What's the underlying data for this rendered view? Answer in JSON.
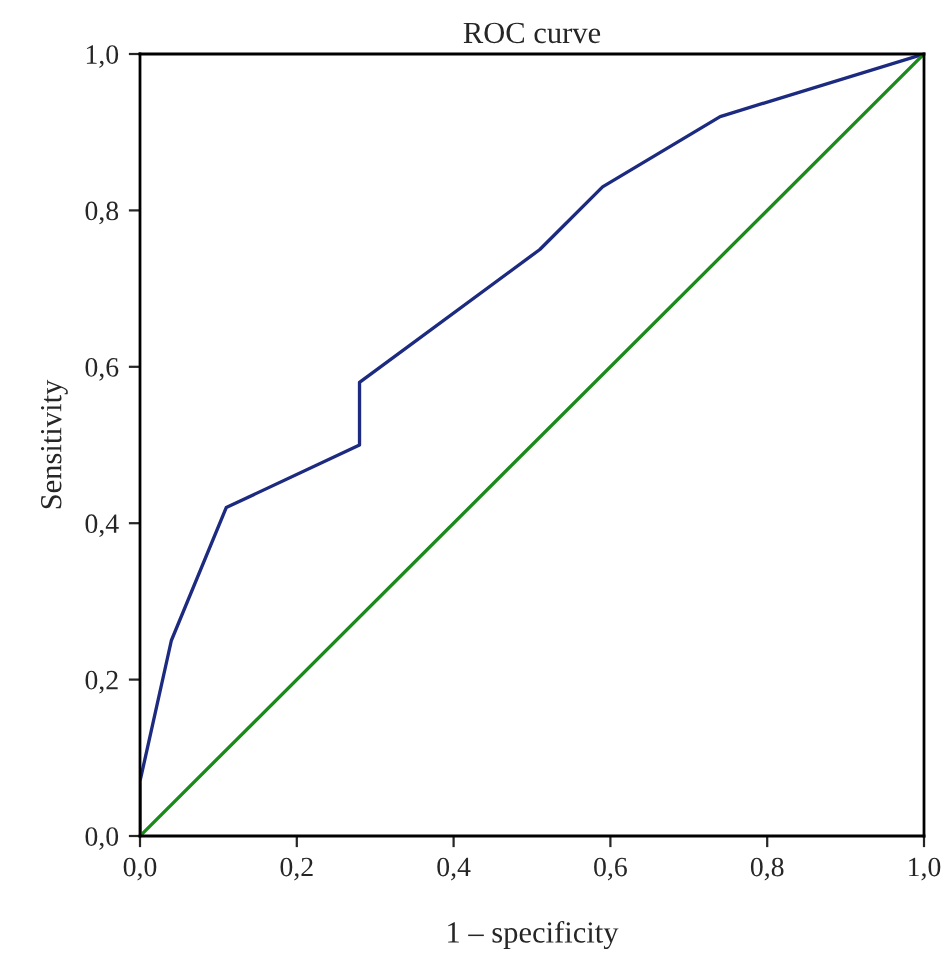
{
  "chart_data": {
    "type": "line",
    "title": "ROC curve",
    "xlabel": "1 – specificity",
    "ylabel": "Sensitivity",
    "series": [
      {
        "color": "#1c2a80",
        "x": [
          0,
          0,
          0.04,
          0.11,
          0.28,
          0.28,
          0.51,
          0.59,
          0.74,
          1
        ],
        "values": [
          0,
          0.07,
          0.25,
          0.42,
          0.5,
          0.58,
          0.75,
          0.83,
          0.92,
          1
        ]
      },
      {
        "color": "#1a8a1a",
        "x": [
          0,
          1
        ],
        "values": [
          0,
          1
        ]
      }
    ],
    "xlim": [
      0,
      1
    ],
    "ylim": [
      0,
      1
    ],
    "xticks": [
      {
        "value": 0,
        "label": "0,0"
      },
      {
        "value": 0.2,
        "label": "0,2"
      },
      {
        "value": 0.4,
        "label": "0,4"
      },
      {
        "value": 0.6,
        "label": "0,6"
      },
      {
        "value": 0.8,
        "label": "0,8"
      },
      {
        "value": 1,
        "label": "1,0"
      }
    ],
    "yticks": [
      {
        "value": 0,
        "label": "0,0"
      },
      {
        "value": 0.2,
        "label": "0,2"
      },
      {
        "value": 0.4,
        "label": "0,4"
      },
      {
        "value": 0.6,
        "label": "0,6"
      },
      {
        "value": 0.8,
        "label": "0,8"
      },
      {
        "value": 1,
        "label": "1,0"
      }
    ],
    "grid": false,
    "marker": "none",
    "line_style": "solid"
  }
}
